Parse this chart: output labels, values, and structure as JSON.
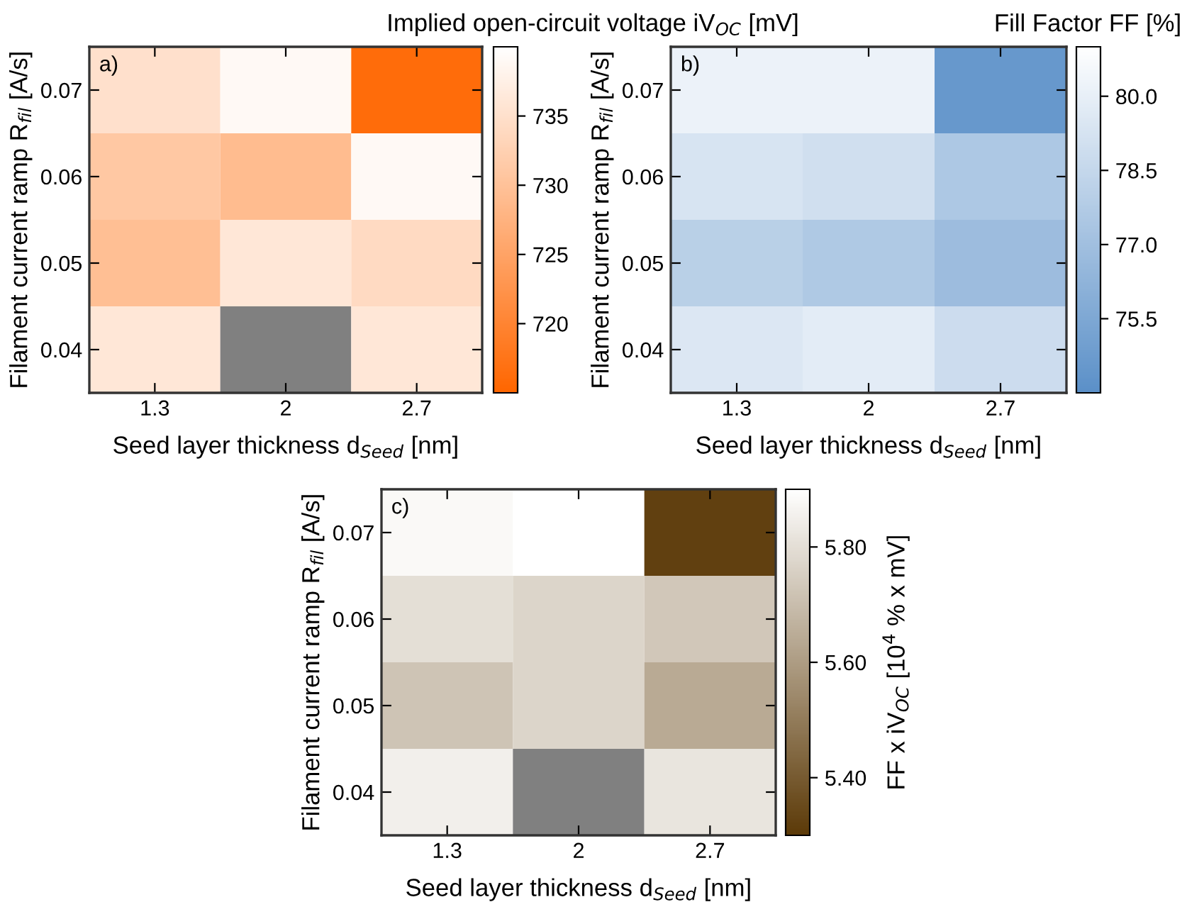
{
  "chart_data": [
    {
      "type": "heatmap",
      "categories": [
        "1.3",
        "2",
        "2.7"
      ],
      "y_categories": [
        "0.07",
        "0.06",
        "0.05",
        "0.04"
      ],
      "xlabel": "Seed layer thickness d$_{Seed}$ [nm]",
      "ylabel": "Filament current ramp R$_{fil}$ [A/s]",
      "clabel": "Implied open-circuit voltage iV$_{OC}$ [mV]",
      "annotations": [
        "a)"
      ],
      "cells": [
        [
          735,
          739,
          716
        ],
        [
          731,
          729,
          739
        ],
        [
          729.5,
          736,
          734
        ],
        [
          736,
          null,
          736
        ]
      ],
      "clim": [
        715,
        740
      ],
      "cticks": [
        720,
        725,
        730,
        735
      ],
      "colors": [
        "#ff6600",
        "#ffffff"
      ]
    },
    {
      "type": "heatmap",
      "categories": [
        "1.3",
        "2",
        "2.7"
      ],
      "y_categories": [
        "0.07",
        "0.06",
        "0.05",
        "0.04"
      ],
      "xlabel": "Seed layer thickness d$_{Seed}$ [nm]",
      "ylabel": "Filament current ramp R$_{fil}$ [A/s]",
      "clabel": "Fill Factor FF [%]",
      "annotations": [
        "b)"
      ],
      "cells": [
        [
          80.2,
          80.2,
          74.5
        ],
        [
          79.3,
          79.0,
          77.5
        ],
        [
          78.0,
          77.6,
          76.8
        ],
        [
          79.5,
          79.8,
          78.8
        ]
      ],
      "clim": [
        74,
        81
      ],
      "cticks": [
        {
          "value": 75.5,
          "label": "75.5"
        },
        {
          "value": 77,
          "label": "77.0"
        },
        {
          "value": 78.5,
          "label": "78.5"
        },
        {
          "value": 80,
          "label": "80.0"
        }
      ],
      "colors": [
        "#5b90c8",
        "#ffffff"
      ]
    },
    {
      "type": "heatmap",
      "categories": [
        "1.3",
        "2",
        "2.7"
      ],
      "y_categories": [
        "0.07",
        "0.06",
        "0.05",
        "0.04"
      ],
      "xlabel": "Seed layer thickness d$_{Seed}$ [nm]",
      "ylabel": "Filament current ramp R$_{fil}$ [A/s]",
      "clabel": "FF x iV$_{OC}$ [10$^{4}$ % x mV]",
      "annotations": [
        "c)"
      ],
      "cells": [
        [
          5.88,
          5.9,
          5.32
        ],
        [
          5.8,
          5.77,
          5.73
        ],
        [
          5.72,
          5.77,
          5.64
        ],
        [
          5.85,
          null,
          5.82
        ]
      ],
      "clim": [
        5.3,
        5.9
      ],
      "cticks": [
        {
          "value": 5.4,
          "label": "5.40"
        },
        {
          "value": 5.6,
          "label": "5.60"
        },
        {
          "value": 5.8,
          "label": "5.80"
        }
      ],
      "colors": [
        "#5c3a08",
        "#ffffff"
      ]
    }
  ]
}
